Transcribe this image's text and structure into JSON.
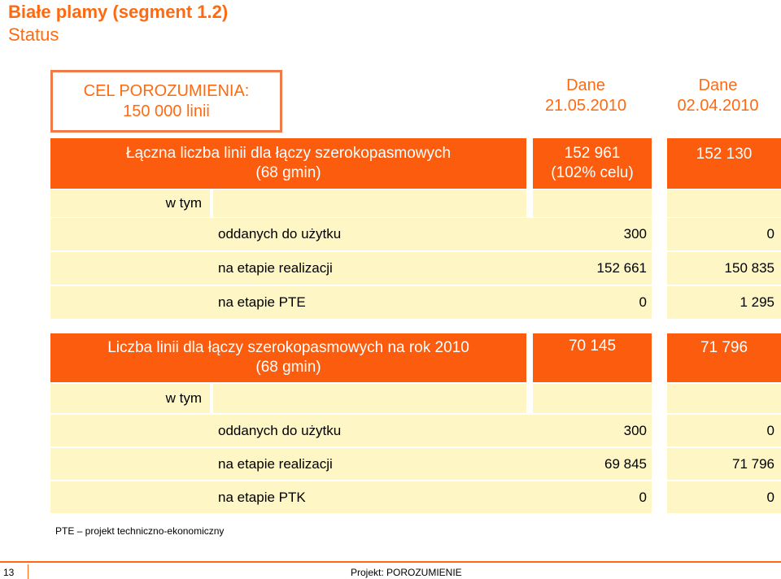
{
  "header": {
    "title": "Białe plamy (segment 1.2)",
    "subtitle": "Status"
  },
  "goal": {
    "line1": "CEL POROZUMIENIA:",
    "line2": "150 000 linii"
  },
  "columns": [
    {
      "line1": "Dane",
      "line2": "21.05.2010"
    },
    {
      "line1": "Dane",
      "line2": "02.04.2010"
    }
  ],
  "section1": {
    "label_line1": "Łączna liczba linii dla łączy szerokopasmowych",
    "label_line2": "(68 gmin)",
    "total_a_line1": "152 961",
    "total_a_line2": "(102% celu)",
    "total_b": "152 130",
    "wtym": "w tym",
    "rows": [
      {
        "label": "oddanych do użytku",
        "a": "300",
        "b": "0"
      },
      {
        "label": "na etapie realizacji",
        "a": "152 661",
        "b": "150 835"
      },
      {
        "label": "na etapie PTE",
        "a": "0",
        "b": "1 295"
      }
    ]
  },
  "section2": {
    "label_line1": "Liczba linii dla łączy szerokopasmowych na rok 2010",
    "label_line2": "(68 gmin)",
    "total_a": "70 145",
    "total_b": "71 796",
    "wtym": "w tym",
    "rows": [
      {
        "label": "oddanych do użytku",
        "a": "300",
        "b": "0"
      },
      {
        "label": "na etapie realizacji",
        "a": "69 845",
        "b": "71 796"
      },
      {
        "label": "na etapie PTK",
        "a": "0",
        "b": "0"
      }
    ]
  },
  "footnote": "PTE – projekt techniczno-ekonomiczny",
  "footer": {
    "page": "13",
    "project": "Projekt: POROZUMIENIE"
  },
  "colors": {
    "accent": "#fb5c0e",
    "cream": "#fef6c5",
    "title": "#ff6a10"
  }
}
